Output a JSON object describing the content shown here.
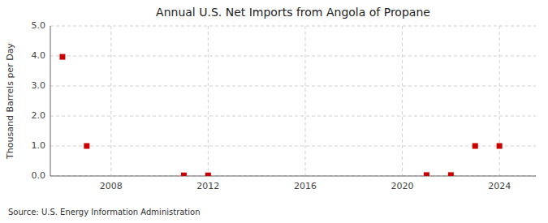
{
  "chart_data": {
    "type": "scatter",
    "title": "Annual U.S. Net Imports from Angola of Propane",
    "ylabel": "Thousand Barrels per Day",
    "source": "Source: U.S. Energy Information Administration",
    "x": [
      2006,
      2007,
      2011,
      2012,
      2021,
      2022,
      2023,
      2024
    ],
    "values": [
      3.97,
      1.0,
      0.02,
      0.02,
      0.03,
      0.03,
      1.0,
      1.0
    ],
    "color": "#cc0000",
    "marker": "square",
    "xlim": [
      2005.5,
      2025.5
    ],
    "xticks": [
      2008,
      2012,
      2016,
      2020,
      2024
    ],
    "ylim": [
      0.0,
      5.0
    ],
    "yticks": [
      {
        "value": 0.0,
        "label": "0.0"
      },
      {
        "value": 1.0,
        "label": "1.0"
      },
      {
        "value": 2.0,
        "label": "2.0"
      },
      {
        "value": 3.0,
        "label": "3.0"
      },
      {
        "value": 4.0,
        "label": "4.0"
      },
      {
        "value": 5.0,
        "label": "5.0"
      }
    ],
    "grid": true
  }
}
